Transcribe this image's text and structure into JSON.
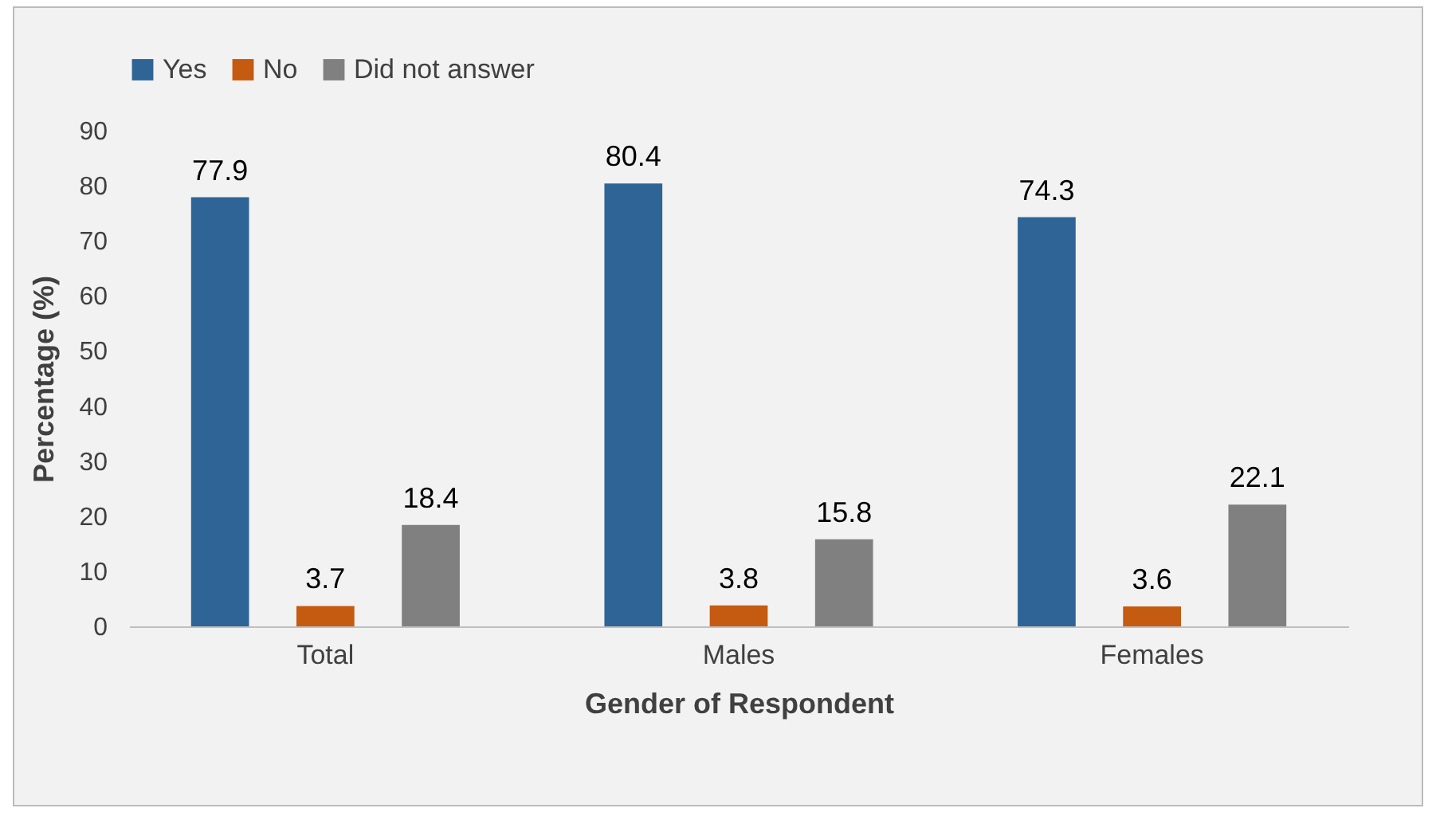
{
  "chart_data": {
    "type": "bar",
    "xlabel": "Gender of Respondent",
    "ylabel": "Percentage (%)",
    "categories": [
      "Total",
      "Males",
      "Females"
    ],
    "series": [
      {
        "name": "Yes",
        "color": "#2e6496",
        "values": [
          77.9,
          80.4,
          74.3
        ]
      },
      {
        "name": "No",
        "color": "#c55a11",
        "values": [
          3.7,
          3.8,
          3.6
        ]
      },
      {
        "name": "Did not answer",
        "color": "#808080",
        "values": [
          18.4,
          15.8,
          22.1
        ]
      }
    ],
    "ylim": [
      0,
      90
    ],
    "yticks": [
      0,
      10,
      20,
      30,
      40,
      50,
      60,
      70,
      80,
      90
    ],
    "grid": false,
    "legend": "top",
    "data_labels": true
  }
}
